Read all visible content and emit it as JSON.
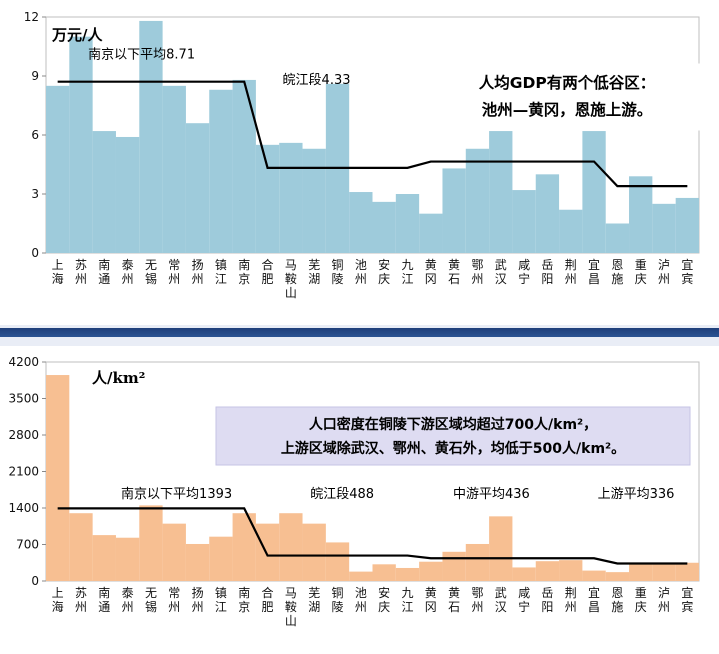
{
  "chart_data": [
    {
      "type": "bar",
      "unit_label": "万元/人",
      "ylim": [
        0,
        12
      ],
      "yticks": [
        0,
        3,
        6,
        9,
        12
      ],
      "categories": [
        "上海",
        "苏州",
        "南通",
        "泰州",
        "无锡",
        "常州",
        "扬州",
        "镇江",
        "南京",
        "合肥",
        "马鞍山",
        "芜湖",
        "铜陵",
        "池州",
        "安庆",
        "九江",
        "黄冈",
        "黄石",
        "鄂州",
        "武汉",
        "咸宁",
        "岳阳",
        "荆州",
        "宜昌",
        "恩施",
        "重庆",
        "泸州",
        "宜宾"
      ],
      "values": [
        8.5,
        11.0,
        6.2,
        5.9,
        11.8,
        8.5,
        6.6,
        8.3,
        8.8,
        5.5,
        5.6,
        5.3,
        8.6,
        3.1,
        2.6,
        3.0,
        2.0,
        4.3,
        5.3,
        6.2,
        3.2,
        4.0,
        2.2,
        6.2,
        1.5,
        3.9,
        2.5,
        2.8
      ],
      "bar_color": "#9ecbdb",
      "reference_line": [
        8.71,
        8.71,
        8.71,
        8.71,
        8.71,
        8.71,
        8.71,
        8.71,
        8.71,
        4.33,
        4.33,
        4.33,
        4.33,
        4.33,
        4.33,
        4.33,
        4.65,
        4.65,
        4.65,
        4.65,
        4.65,
        4.65,
        4.65,
        4.65,
        3.4,
        3.4,
        3.4,
        3.4
      ],
      "annotations": [
        {
          "text": "南京以下平均8.71",
          "x_index": 3.6,
          "y": 9.9
        },
        {
          "text": "皖江段4.33",
          "x_index": 11.1,
          "y": 8.6
        }
      ],
      "callout": {
        "lines": [
          "人均GDP有两个低谷区：",
          "池州—黄冈，恩施上游。"
        ]
      }
    },
    {
      "type": "bar",
      "unit_label": "人/km²",
      "ylim": [
        0,
        4200
      ],
      "yticks": [
        0,
        700,
        1400,
        2100,
        2800,
        3500,
        4200
      ],
      "categories": [
        "上海",
        "苏州",
        "南通",
        "泰州",
        "无锡",
        "常州",
        "扬州",
        "镇江",
        "南京",
        "合肥",
        "马鞍山",
        "芜湖",
        "铜陵",
        "池州",
        "安庆",
        "九江",
        "黄冈",
        "黄石",
        "鄂州",
        "武汉",
        "咸宁",
        "岳阳",
        "荆州",
        "宜昌",
        "恩施",
        "重庆",
        "泸州",
        "宜宾"
      ],
      "values": [
        3950,
        1300,
        880,
        830,
        1450,
        1100,
        710,
        850,
        1300,
        1100,
        1300,
        1100,
        740,
        180,
        320,
        250,
        370,
        560,
        710,
        1240,
        260,
        380,
        400,
        200,
        170,
        350,
        350,
        350
      ],
      "bar_color": "#f7bf92",
      "reference_line": [
        1393,
        1393,
        1393,
        1393,
        1393,
        1393,
        1393,
        1393,
        1393,
        488,
        488,
        488,
        488,
        488,
        488,
        488,
        436,
        436,
        436,
        436,
        436,
        436,
        436,
        436,
        336,
        336,
        336,
        336
      ],
      "annotations": [
        {
          "text": "南京以下平均1393",
          "x_index": 5.1,
          "y": 1590
        },
        {
          "text": "皖江段488",
          "x_index": 12.2,
          "y": 1590
        },
        {
          "text": "中游平均436",
          "x_index": 18.6,
          "y": 1590
        },
        {
          "text": "上游平均336",
          "x_index": 24.8,
          "y": 1590
        }
      ],
      "callout": {
        "lines": [
          "人口密度在铜陵下游区域均超过700人/km²，",
          "上游区域除武汉、鄂州、黄石外，均低于500人/km²。"
        ]
      }
    }
  ]
}
